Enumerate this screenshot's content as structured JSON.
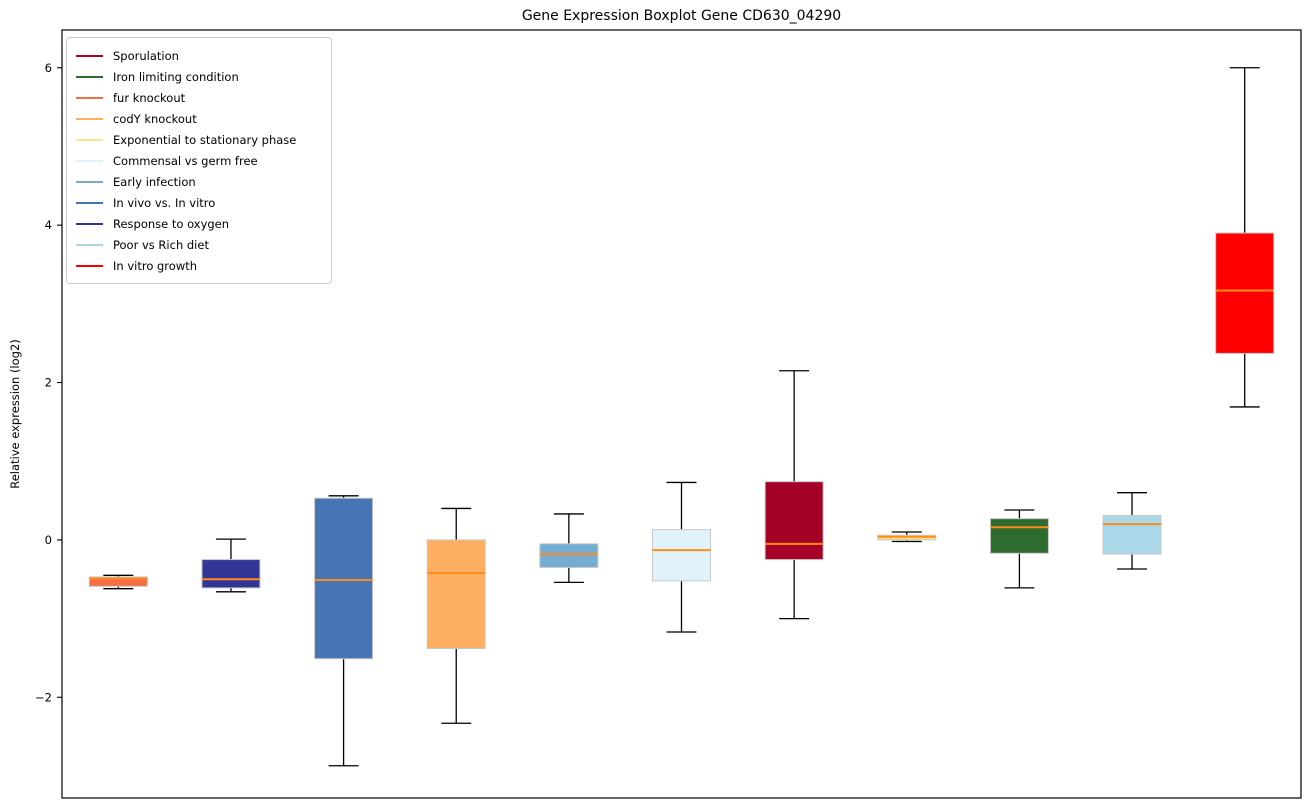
{
  "chart_data": {
    "type": "boxplot",
    "title": "Gene Expression Boxplot Gene CD630_04290",
    "ylabel": "Relative expression (log2)",
    "xlabel": "",
    "ylim": [
      -3.28,
      6.48
    ],
    "y_ticks": [
      -2,
      0,
      2,
      4,
      6
    ],
    "x_tick_labels": [],
    "grid": false,
    "legend_position": "upper-left",
    "median_color": "#FF8C1A",
    "whisker_color": "#000000",
    "box_edge_color": "#c8c8c8",
    "legend": [
      {
        "label": "Sporulation",
        "color": "#A50026"
      },
      {
        "label": "Iron limiting condition",
        "color": "#2E6B2E"
      },
      {
        "label": "fur knockout",
        "color": "#F46D43"
      },
      {
        "label": "codY knockout",
        "color": "#FDAE61"
      },
      {
        "label": "Exponential to stationary phase",
        "color": "#FEE090"
      },
      {
        "label": "Commensal vs germ free",
        "color": "#E0F3F8"
      },
      {
        "label": "Early infection",
        "color": "#74ADD1"
      },
      {
        "label": "In vivo vs. In vitro",
        "color": "#4575B4"
      },
      {
        "label": "Response to oxygen",
        "color": "#313695"
      },
      {
        "label": "Poor vs Rich diet",
        "color": "#ABD9E9"
      },
      {
        "label": "In vitro growth",
        "color": "#FF0000"
      }
    ],
    "series": [
      {
        "name": "fur knockout",
        "color": "#F46D43",
        "whislo": -0.62,
        "q1": -0.59,
        "med": -0.49,
        "q3": -0.47,
        "whishi": -0.45
      },
      {
        "name": "Response to oxygen",
        "color": "#313695",
        "whislo": -0.66,
        "q1": -0.61,
        "med": -0.5,
        "q3": -0.25,
        "whishi": 0.01
      },
      {
        "name": "In vivo vs. In vitro",
        "color": "#4575B4",
        "whislo": -2.87,
        "q1": -1.51,
        "med": -0.51,
        "q3": 0.53,
        "whishi": 0.56
      },
      {
        "name": "codY knockout",
        "color": "#FDAE61",
        "whislo": -2.33,
        "q1": -1.38,
        "med": -0.42,
        "q3": 0.0,
        "whishi": 0.4
      },
      {
        "name": "Early infection",
        "color": "#74ADD1",
        "whislo": -0.54,
        "q1": -0.35,
        "med": -0.18,
        "q3": -0.05,
        "whishi": 0.33
      },
      {
        "name": "Commensal vs germ free",
        "color": "#E0F3F8",
        "whislo": -1.17,
        "q1": -0.52,
        "med": -0.13,
        "q3": 0.13,
        "whishi": 0.73
      },
      {
        "name": "Sporulation",
        "color": "#A50026",
        "whislo": -1.0,
        "q1": -0.25,
        "med": -0.05,
        "q3": 0.74,
        "whishi": 2.15
      },
      {
        "name": "Exponential to stationary phase",
        "color": "#FEE090",
        "whislo": -0.02,
        "q1": 0.0,
        "med": 0.04,
        "q3": 0.06,
        "whishi": 0.1
      },
      {
        "name": "Iron limiting condition",
        "color": "#2E6B2E",
        "whislo": -0.61,
        "q1": -0.17,
        "med": 0.16,
        "q3": 0.27,
        "whishi": 0.38
      },
      {
        "name": "Poor vs Rich diet",
        "color": "#ABD9E9",
        "whislo": -0.37,
        "q1": -0.18,
        "med": 0.2,
        "q3": 0.31,
        "whishi": 0.6
      },
      {
        "name": "In vitro growth",
        "color": "#FF0000",
        "whislo": 1.69,
        "q1": 2.37,
        "med": 3.17,
        "q3": 3.9,
        "whishi": 6.0
      }
    ]
  }
}
